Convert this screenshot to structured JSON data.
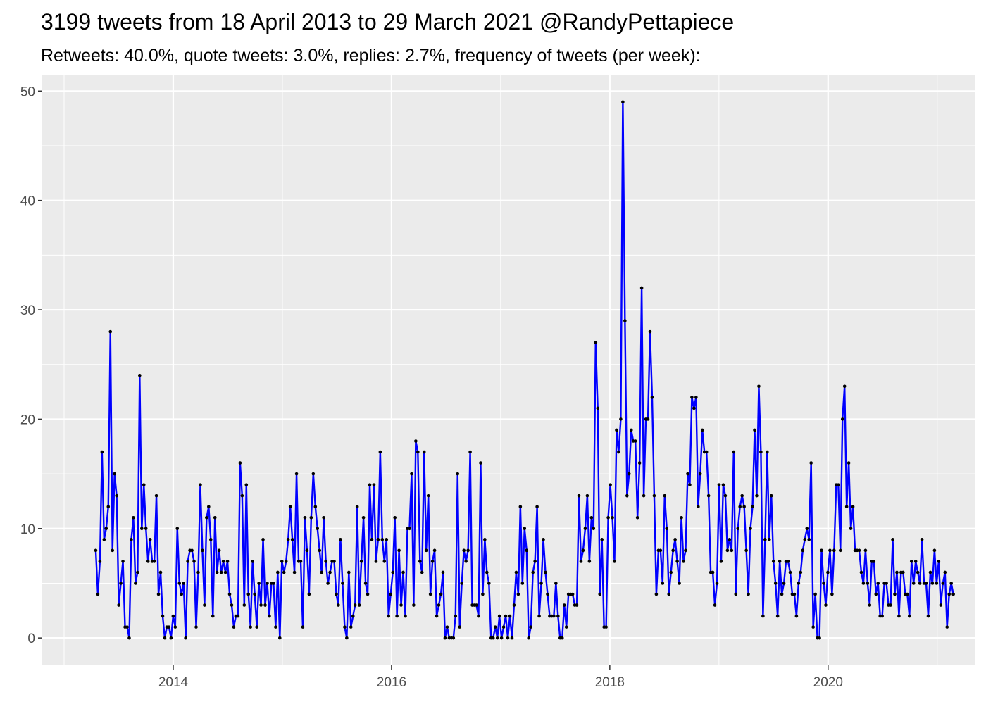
{
  "chart_data": {
    "type": "line",
    "title": "3199 tweets from 18 April 2013 to 29 March 2021 @RandyPettapiece",
    "subtitle": "Retweets: 40.0%, quote tweets: 3.0%, replies: 2.7%, frequency of tweets (per week):",
    "xlabel": "",
    "ylabel": "",
    "x_unit": "year (decimal)",
    "xlim": [
      2012.8,
      2021.35
    ],
    "ylim": [
      -2.5,
      51.5
    ],
    "x_ticks": [
      2014,
      2016,
      2018,
      2020
    ],
    "x_tick_labels": [
      "2014",
      "2016",
      "2018",
      "2020"
    ],
    "y_ticks": [
      0,
      10,
      20,
      30,
      40,
      50
    ],
    "y_tick_labels": [
      "0",
      "10",
      "20",
      "30",
      "40",
      "50"
    ],
    "grid": true,
    "legend": "none",
    "line_color": "#0000ff",
    "point_color": "#000000",
    "panel_background": "#ebebeb",
    "grid_color": "#ffffff",
    "x_start": 2013.29,
    "x_step_weeks": 1,
    "values": [
      8,
      4,
      7,
      17,
      9,
      10,
      12,
      28,
      8,
      15,
      13,
      3,
      5,
      7,
      1,
      1,
      0,
      9,
      11,
      5,
      6,
      24,
      10,
      14,
      10,
      7,
      9,
      7,
      7,
      13,
      4,
      6,
      2,
      0,
      1,
      1,
      0,
      2,
      1,
      10,
      5,
      4,
      5,
      0,
      7,
      8,
      8,
      7,
      1,
      6,
      14,
      8,
      3,
      11,
      12,
      9,
      2,
      11,
      6,
      8,
      6,
      7,
      6,
      7,
      4,
      3,
      1,
      2,
      2,
      16,
      13,
      3,
      14,
      4,
      1,
      7,
      4,
      1,
      5,
      3,
      9,
      3,
      5,
      2,
      5,
      5,
      1,
      6,
      0,
      7,
      6,
      7,
      9,
      12,
      9,
      6,
      15,
      7,
      7,
      1,
      11,
      8,
      4,
      11,
      15,
      12,
      10,
      8,
      6,
      11,
      7,
      5,
      6,
      7,
      7,
      4,
      3,
      9,
      5,
      1,
      0,
      6,
      1,
      2,
      3,
      12,
      3,
      7,
      11,
      5,
      4,
      14,
      9,
      14,
      7,
      9,
      17,
      9,
      7,
      9,
      2,
      4,
      6,
      11,
      2,
      8,
      3,
      6,
      2,
      10,
      10,
      15,
      3,
      18,
      17,
      7,
      6,
      17,
      8,
      13,
      4,
      7,
      8,
      2,
      3,
      4,
      6,
      0,
      1,
      0,
      0,
      0,
      2,
      15,
      1,
      5,
      8,
      7,
      8,
      17,
      3,
      3,
      3,
      2,
      16,
      4,
      9,
      6,
      5,
      0,
      0,
      1,
      0,
      2,
      0,
      1,
      2,
      0,
      2,
      0,
      3,
      6,
      4,
      12,
      5,
      10,
      8,
      0,
      1,
      6,
      7,
      12,
      2,
      5,
      9,
      6,
      4,
      2,
      2,
      2,
      5,
      2,
      0,
      0,
      3,
      1,
      4,
      4,
      4,
      3,
      3,
      13,
      7,
      8,
      10,
      13,
      7,
      11,
      10,
      27,
      21,
      4,
      9,
      1,
      1,
      11,
      14,
      11,
      7,
      19,
      17,
      20,
      49,
      29,
      13,
      15,
      19,
      18,
      18,
      11,
      16,
      32,
      13,
      20,
      20,
      28,
      22,
      13,
      4,
      8,
      8,
      5,
      13,
      10,
      4,
      6,
      8,
      9,
      7,
      5,
      11,
      7,
      8,
      15,
      14,
      22,
      21,
      22,
      12,
      15,
      19,
      17,
      17,
      13,
      6,
      6,
      3,
      5,
      14,
      7,
      14,
      13,
      8,
      9,
      8,
      17,
      4,
      10,
      12,
      13,
      12,
      8,
      4,
      10,
      12,
      19,
      13,
      23,
      17,
      2,
      9,
      17,
      9,
      13,
      7,
      5,
      2,
      7,
      4,
      5,
      7,
      7,
      6,
      4,
      4,
      2,
      5,
      6,
      8,
      9,
      10,
      9,
      16,
      1,
      4,
      0,
      0,
      8,
      5,
      3,
      6,
      8,
      4,
      8,
      14,
      14,
      8,
      20,
      23,
      12,
      16,
      10,
      12,
      8,
      8,
      8,
      6,
      5,
      8,
      5,
      3,
      7,
      7,
      4,
      5,
      2,
      2,
      5,
      5,
      3,
      3,
      9,
      4,
      6,
      2,
      6,
      6,
      4,
      4,
      2,
      7,
      5,
      7,
      6,
      5,
      9,
      5,
      5,
      2,
      6,
      5,
      8,
      5,
      7,
      3,
      5,
      6,
      1,
      4,
      5,
      4
    ]
  }
}
